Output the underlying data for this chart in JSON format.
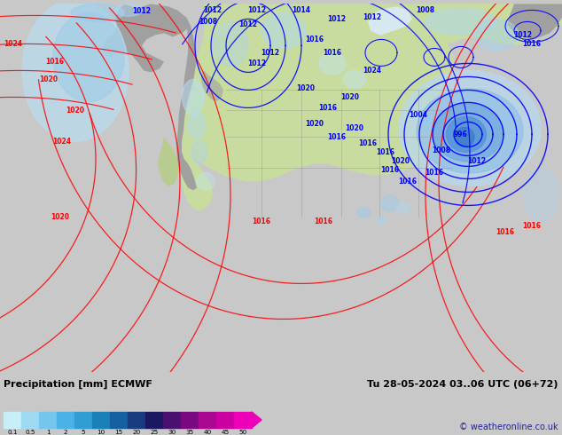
{
  "title_left": "Precipitation [mm] ECMWF",
  "title_right": "Tu 28-05-2024 03..06 UTC (06+72)",
  "copyright": "© weatheronline.co.uk",
  "colorbar_values": [
    "0.1",
    "0.5",
    "1",
    "2",
    "5",
    "10",
    "15",
    "20",
    "25",
    "30",
    "35",
    "40",
    "45",
    "50"
  ],
  "colorbar_colors": [
    "#c8eef8",
    "#9edaf2",
    "#74c6ec",
    "#4ab2e6",
    "#309ed4",
    "#1a80b8",
    "#1460a0",
    "#183c80",
    "#1a1860",
    "#4a1070",
    "#7a0880",
    "#aa0890",
    "#cc00a0",
    "#ee00b8"
  ],
  "ocean_color": "#d8e8f0",
  "land_color": "#c8dca0",
  "land_color2": "#b8cc90",
  "gray_color": "#a0a0a0",
  "bottom_bg": "#c8c8c8",
  "figsize": [
    6.34,
    4.9
  ],
  "dpi": 100
}
